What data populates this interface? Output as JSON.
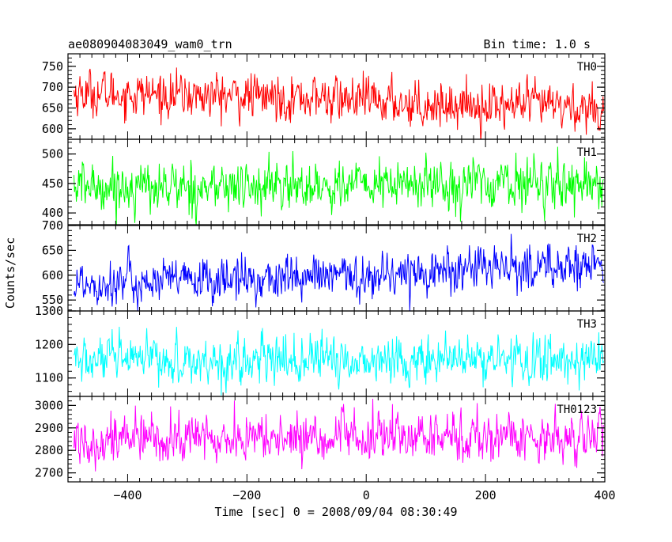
{
  "chart_data": {
    "type": "line",
    "title": "ae080904083049_wam0_trn",
    "subtitle": "Bin time: 1.0 s",
    "xlabel": "Time [sec] 0 = 2008/09/04 08:30:49",
    "ylabel": "Counts/sec",
    "x_range": [
      -500,
      400
    ],
    "x_ticks": [
      -400,
      -200,
      0,
      200,
      400
    ],
    "x_tick_labels": [
      "−400",
      "−200",
      "0",
      "200",
      "400"
    ],
    "bin_time_s": 1.0,
    "panels": [
      {
        "label": "TH0",
        "color": "#ff0000",
        "ylim": [
          575,
          780
        ],
        "yticks": [
          600,
          650,
          700,
          750
        ],
        "ytick_labels": [
          "600",
          "650",
          "700",
          "750"
        ],
        "mean_start": 687,
        "mean_end": 648,
        "noise_sigma": 27,
        "mean_profile": [
          [
            -500,
            687
          ],
          [
            -300,
            680
          ],
          [
            -100,
            675
          ],
          [
            100,
            660
          ],
          [
            300,
            655
          ],
          [
            400,
            648
          ]
        ]
      },
      {
        "label": "TH1",
        "color": "#00ff00",
        "ylim": [
          380,
          525
        ],
        "yticks": [
          400,
          450,
          500
        ],
        "ytick_labels": [
          "400",
          "450",
          "500"
        ],
        "mean_start": 445,
        "mean_end": 452,
        "noise_sigma": 21,
        "mean_profile": [
          [
            -500,
            445
          ],
          [
            -200,
            444
          ],
          [
            0,
            447
          ],
          [
            200,
            450
          ],
          [
            400,
            452
          ]
        ]
      },
      {
        "label": "TH2",
        "color": "#0000ff",
        "ylim": [
          528,
          700
        ],
        "yticks": [
          550,
          600,
          650,
          700
        ],
        "ytick_labels": [
          "550",
          "600",
          "650",
          "700"
        ],
        "mean_start": 585,
        "mean_end": 620,
        "noise_sigma": 23,
        "mean_profile": [
          [
            -500,
            585
          ],
          [
            -300,
            588
          ],
          [
            0,
            598
          ],
          [
            100,
            608
          ],
          [
            250,
            615
          ],
          [
            400,
            620
          ]
        ]
      },
      {
        "label": "TH3",
        "color": "#00ffff",
        "ylim": [
          1045,
          1300
        ],
        "yticks": [
          1100,
          1200,
          1300
        ],
        "ytick_labels": [
          "1100",
          "1200",
          "1300"
        ],
        "mean_start": 1150,
        "mean_end": 1155,
        "noise_sigma": 35,
        "mean_profile": [
          [
            -500,
            1150
          ],
          [
            0,
            1152
          ],
          [
            400,
            1155
          ]
        ]
      },
      {
        "label": "TH0123",
        "color": "#ff00ff",
        "ylim": [
          2660,
          3040
        ],
        "yticks": [
          2700,
          2800,
          2900,
          3000
        ],
        "ytick_labels": [
          "2700",
          "2800",
          "2900",
          "3000"
        ],
        "mean_start": 2850,
        "mean_end": 2865,
        "noise_sigma": 55,
        "mean_profile": [
          [
            -500,
            2850
          ],
          [
            0,
            2855
          ],
          [
            400,
            2865
          ]
        ]
      }
    ]
  }
}
